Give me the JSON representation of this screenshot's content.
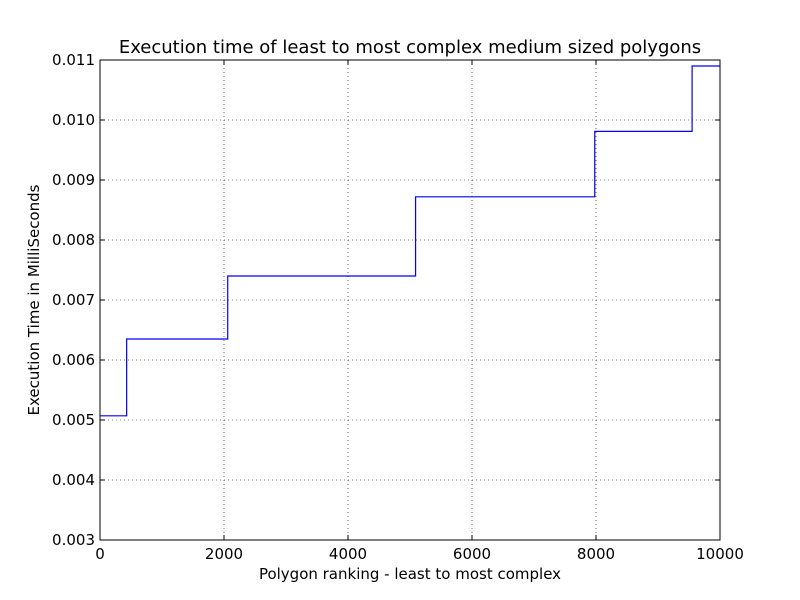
{
  "chart_data": {
    "type": "line",
    "title": "Execution time of least to most complex medium sized polygons",
    "xlabel": "Polygon ranking - least to most complex",
    "ylabel": "Execution Time in MilliSeconds",
    "xlim": [
      0,
      10000
    ],
    "ylim": [
      0.003,
      0.011
    ],
    "xticks": [
      0,
      2000,
      4000,
      6000,
      8000,
      10000
    ],
    "xtick_labels": [
      "0",
      "2000",
      "4000",
      "6000",
      "8000",
      "10000"
    ],
    "yticks": [
      0.003,
      0.004,
      0.005,
      0.006,
      0.007,
      0.008,
      0.009,
      0.01,
      0.011
    ],
    "ytick_labels": [
      "0.003",
      "0.004",
      "0.005",
      "0.006",
      "0.007",
      "0.008",
      "0.009",
      "0.010",
      "0.011"
    ],
    "grid": true,
    "line_color": "#0000ff",
    "series": [
      {
        "step": "post",
        "x": [
          0,
          430,
          2060,
          5090,
          7980,
          9550,
          10000
        ],
        "y": [
          0.00507,
          0.00635,
          0.0074,
          0.00872,
          0.00981,
          0.0109,
          0.0109
        ]
      }
    ]
  }
}
